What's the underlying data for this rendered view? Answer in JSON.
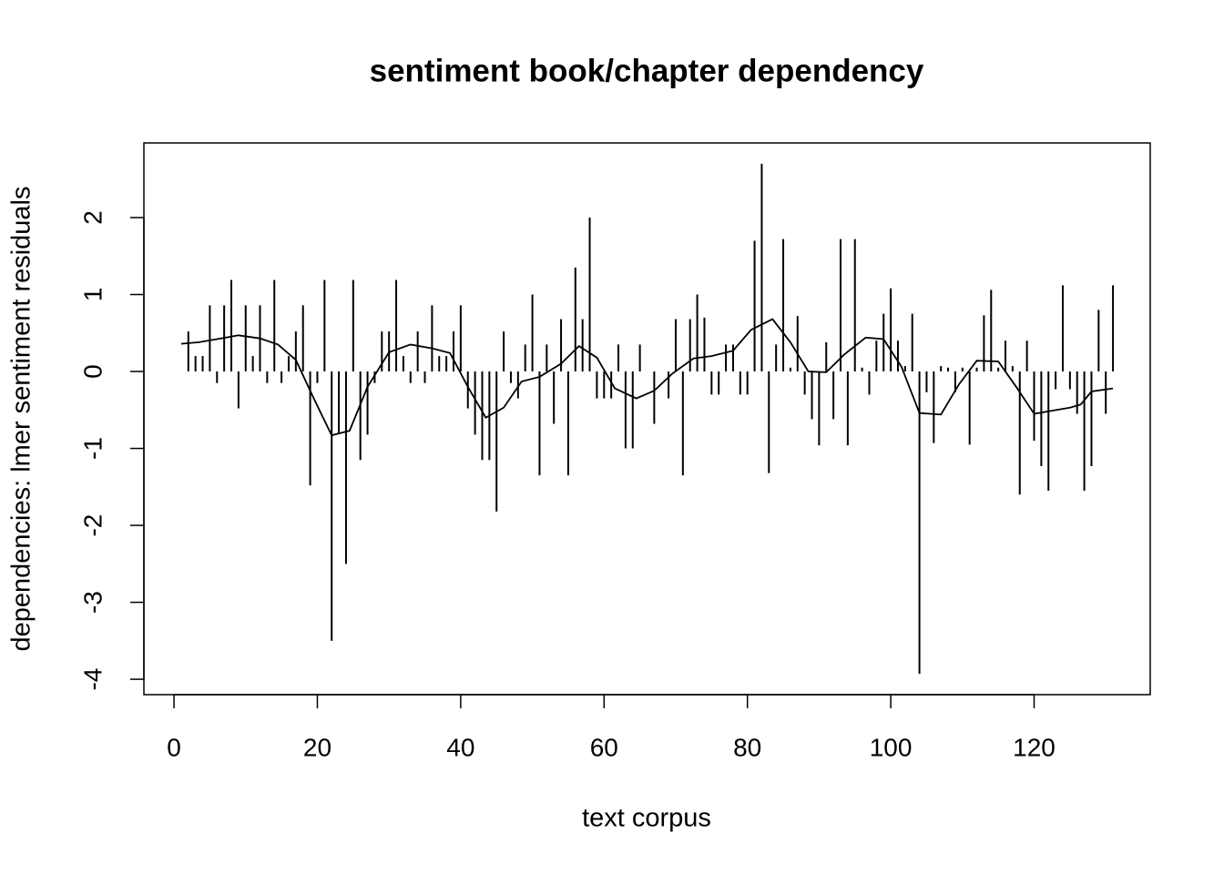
{
  "chart_data": {
    "type": "line",
    "title": "sentiment book/chapter dependency",
    "x_label": "text corpus",
    "y_label": "dependencies: lmer sentiment residuals",
    "xlim": [
      -4.2,
      136.2
    ],
    "ylim": [
      -4.2,
      2.97
    ],
    "xticks": [
      0,
      20,
      40,
      60,
      80,
      100,
      120
    ],
    "yticks": [
      -4,
      -3,
      -2,
      -1,
      0,
      1,
      2
    ],
    "series": [
      {
        "style": "spikes",
        "color": "#000000",
        "x": [
          1,
          2,
          3,
          4,
          5,
          6,
          7,
          8,
          9,
          10,
          11,
          12,
          13,
          14,
          15,
          16,
          17,
          18,
          19,
          20,
          21,
          22,
          23,
          24,
          25,
          26,
          27,
          28,
          29,
          30,
          31,
          32,
          33,
          34,
          35,
          36,
          37,
          38,
          39,
          40,
          41,
          42,
          43,
          44,
          45,
          46,
          47,
          48,
          49,
          50,
          51,
          52,
          53,
          54,
          55,
          56,
          57,
          58,
          59,
          60,
          61,
          62,
          63,
          64,
          65,
          66,
          67,
          68,
          69,
          70,
          71,
          72,
          73,
          74,
          75,
          76,
          77,
          78,
          79,
          80,
          81,
          82,
          83,
          84,
          85,
          86,
          87,
          88,
          89,
          90,
          91,
          92,
          93,
          94,
          95,
          96,
          97,
          98,
          99,
          100,
          101,
          102,
          103,
          104,
          105,
          106,
          107,
          108,
          109,
          110,
          111,
          112,
          113,
          114,
          115,
          116,
          117,
          118,
          119,
          120,
          121,
          122,
          123,
          124,
          125,
          126,
          127,
          128,
          129,
          130,
          131
        ],
        "values": [
          0,
          0.52,
          0.2,
          0.2,
          0.86,
          -0.15,
          0.86,
          1.19,
          -0.48,
          0.86,
          0.2,
          0.86,
          -0.15,
          1.19,
          -0.15,
          0.2,
          0.52,
          0.86,
          -1.48,
          -0.15,
          1.19,
          -3.5,
          -0.8,
          -2.5,
          1.19,
          -1.15,
          -0.82,
          -0.15,
          0.52,
          0.52,
          1.19,
          0.2,
          -0.15,
          0.52,
          -0.15,
          0.86,
          0.2,
          0.2,
          0.52,
          0.86,
          -0.48,
          -0.82,
          -1.15,
          -1.15,
          -1.82,
          0.52,
          -0.15,
          -0.35,
          0.35,
          1.0,
          -1.35,
          0.35,
          -0.68,
          0.68,
          -1.35,
          1.35,
          0.68,
          2.0,
          -0.35,
          -0.35,
          -0.35,
          0.35,
          -1.0,
          -1.0,
          0.35,
          0,
          -0.68,
          0,
          -0.35,
          0.68,
          -1.35,
          0.68,
          1.0,
          0.7,
          -0.3,
          -0.3,
          0.35,
          0.35,
          -0.3,
          -0.3,
          1.7,
          2.7,
          -1.32,
          0.35,
          1.72,
          0.05,
          0.72,
          -0.3,
          -0.62,
          -0.96,
          0.38,
          -0.62,
          1.72,
          -0.96,
          1.72,
          0.05,
          -0.3,
          0.4,
          0.75,
          1.08,
          0.4,
          0.07,
          0.75,
          -3.93,
          -0.27,
          -0.93,
          0.07,
          0.05,
          -0.27,
          0.05,
          -0.95,
          0.05,
          0.73,
          1.06,
          0.05,
          0.4,
          0.07,
          -1.6,
          0.4,
          -0.9,
          -1.23,
          -1.55,
          -0.23,
          1.12,
          -0.23,
          -0.55,
          -1.55,
          -1.23,
          0.8,
          -0.55,
          1.12
        ]
      },
      {
        "style": "line",
        "color": "#000000",
        "x": [
          1,
          3.5,
          6,
          9,
          12,
          14.5,
          17,
          19.5,
          22,
          24.5,
          27,
          30,
          33,
          36,
          38.5,
          41,
          43.5,
          46,
          48.5,
          51,
          54,
          56.5,
          59,
          61.5,
          64.5,
          67,
          69.5,
          72.5,
          75,
          78,
          80.5,
          83.5,
          86,
          88.5,
          91,
          93.5,
          96.5,
          99,
          101.5,
          104,
          107,
          109.5,
          112,
          115,
          117.5,
          120,
          122.5,
          125,
          126.5,
          128,
          131
        ],
        "values": [
          0.36,
          0.38,
          0.42,
          0.47,
          0.43,
          0.35,
          0.15,
          -0.35,
          -0.83,
          -0.77,
          -0.2,
          0.25,
          0.35,
          0.3,
          0.24,
          -0.2,
          -0.6,
          -0.47,
          -0.13,
          -0.07,
          0.1,
          0.33,
          0.18,
          -0.22,
          -0.35,
          -0.25,
          -0.03,
          0.17,
          0.2,
          0.27,
          0.54,
          0.68,
          0.38,
          0,
          -0.01,
          0.22,
          0.44,
          0.42,
          0.06,
          -0.54,
          -0.56,
          -0.17,
          0.14,
          0.13,
          -0.2,
          -0.55,
          -0.51,
          -0.47,
          -0.43,
          -0.26,
          -0.22
        ]
      }
    ]
  }
}
